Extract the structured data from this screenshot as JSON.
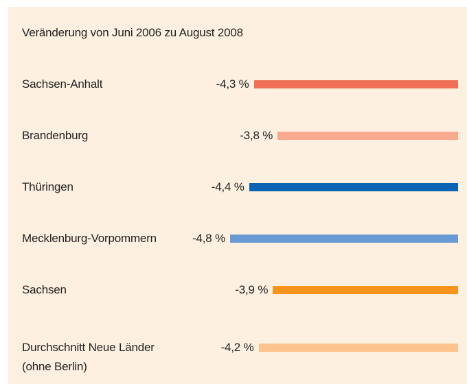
{
  "chart_data": {
    "type": "bar",
    "orientation": "horizontal",
    "title": "Veränderung von Juni 2006 zu August 2008",
    "categories": [
      "Sachsen-Anhalt",
      "Brandenburg",
      "Thüringen",
      "Mecklenburg-Vorpommern",
      "Sachsen",
      "Durchschnitt Neue Länder\n(ohne Berlin)"
    ],
    "values": [
      -4.3,
      -3.8,
      -4.4,
      -4.8,
      -3.9,
      -4.2
    ],
    "value_labels": [
      "-4,3 %",
      "-3,8 %",
      "-4,4 %",
      "-4,8 %",
      "-3,9 %",
      "-4,2 %"
    ],
    "colors": [
      "#f07057",
      "#f9a98f",
      "#0a64b4",
      "#6a9ad4",
      "#f7941d",
      "#fdc38f"
    ]
  }
}
